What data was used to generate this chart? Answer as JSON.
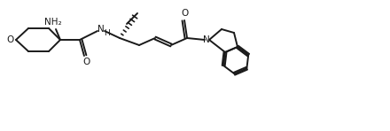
{
  "bg_color": "#ffffff",
  "line_color": "#1a1a1a",
  "lw": 1.4,
  "fs": 7.0,
  "fig_width": 4.4,
  "fig_height": 1.48,
  "dpi": 100,
  "xlim": [
    0,
    440
  ],
  "ylim": [
    0,
    148
  ]
}
